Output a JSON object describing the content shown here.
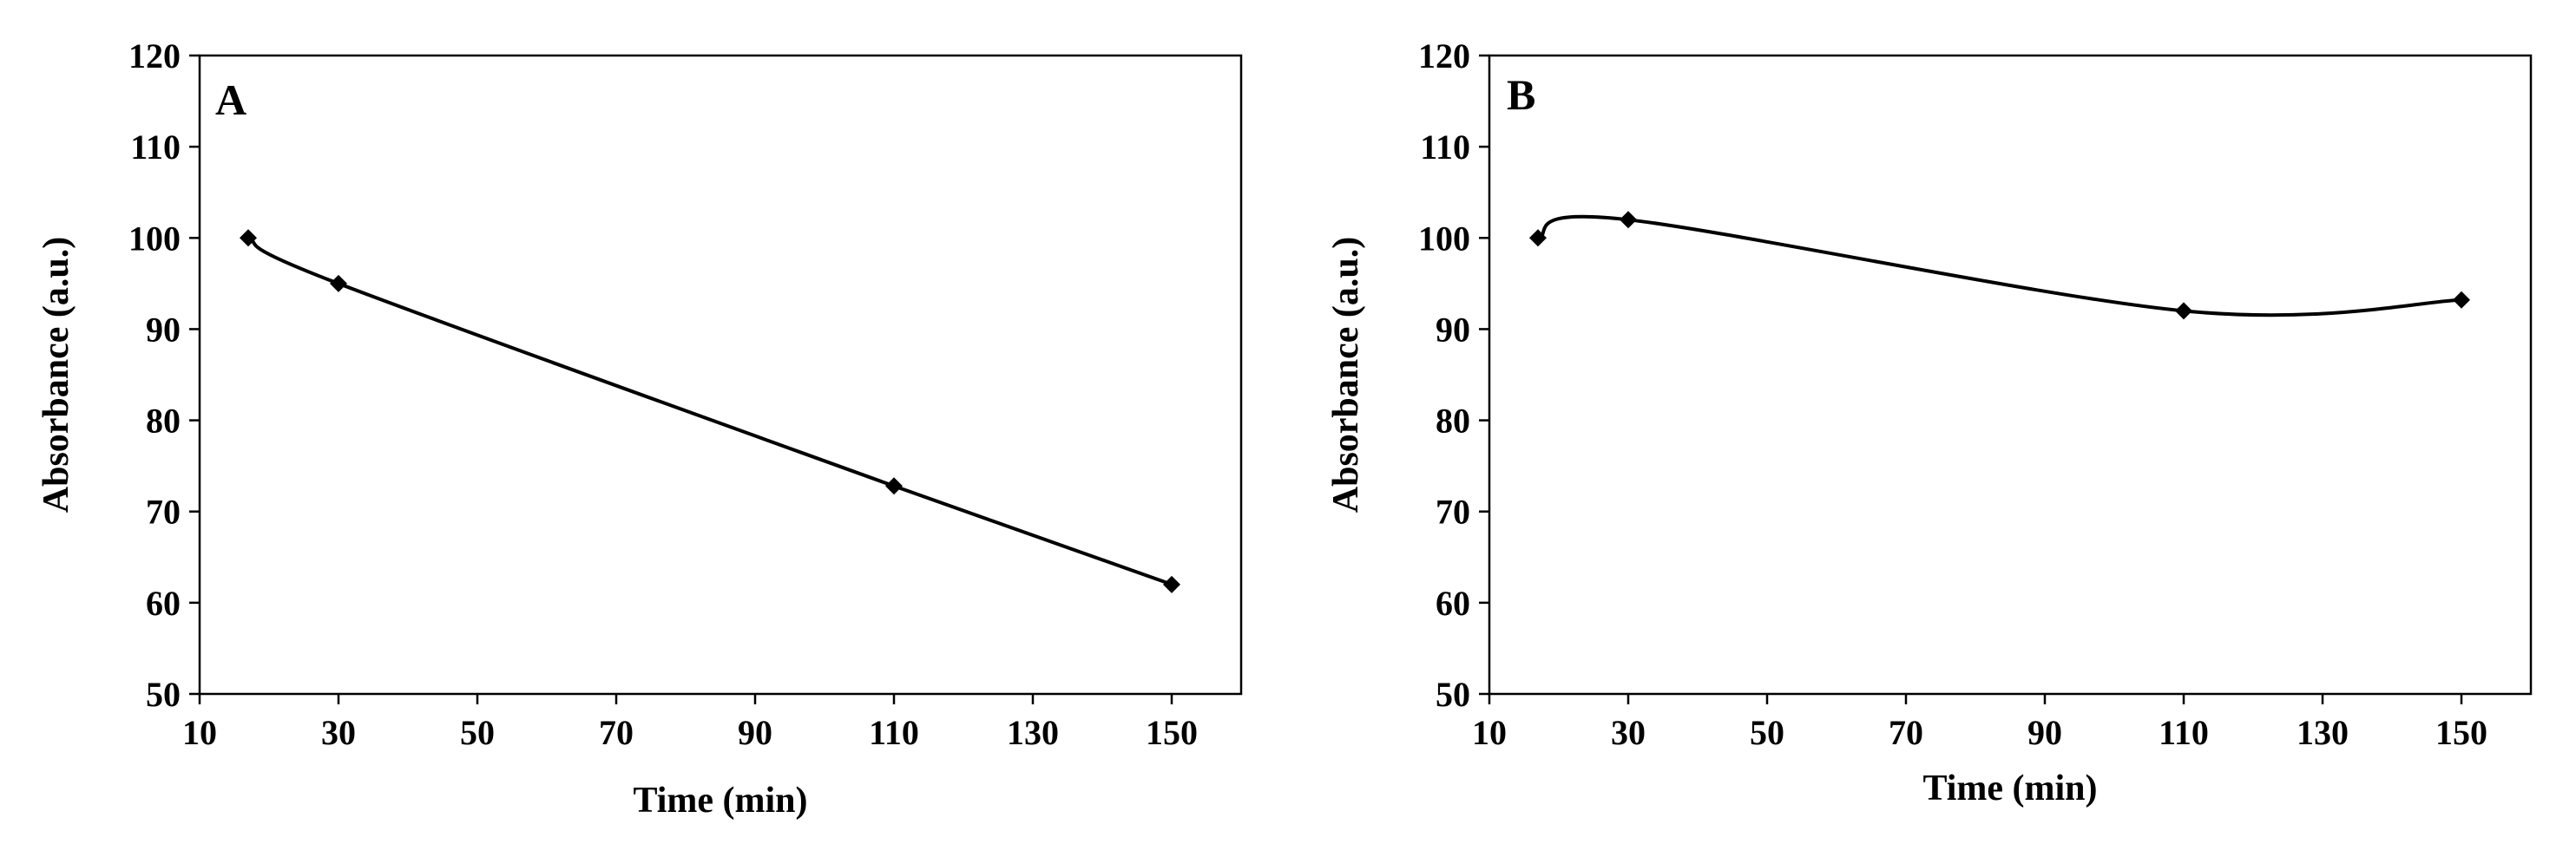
{
  "chart_data": [
    {
      "type": "line",
      "panel_label": "A",
      "xlabel": "Time (min)",
      "ylabel": "Absorbance (a.u.)",
      "xlim": [
        10,
        160
      ],
      "ylim": [
        50,
        120
      ],
      "xticks": [
        10,
        30,
        50,
        70,
        90,
        110,
        130,
        150
      ],
      "yticks": [
        50,
        60,
        70,
        80,
        90,
        100,
        110,
        120
      ],
      "grid": false,
      "smooth": true,
      "marker": "diamond",
      "color": "#000000",
      "series": [
        {
          "x": [
            17,
            30,
            110,
            150
          ],
          "y": [
            100,
            95,
            72.8,
            62
          ]
        }
      ]
    },
    {
      "type": "line",
      "panel_label": "B",
      "xlabel": "Time (min)",
      "ylabel": "Absorbance (a.u.)",
      "xlim": [
        10,
        160
      ],
      "ylim": [
        50,
        120
      ],
      "xticks": [
        10,
        30,
        50,
        70,
        90,
        110,
        130,
        150
      ],
      "yticks": [
        50,
        60,
        70,
        80,
        90,
        100,
        110,
        120
      ],
      "grid": false,
      "smooth": true,
      "marker": "diamond",
      "color": "#000000",
      "series": [
        {
          "x": [
            17,
            30,
            110,
            150
          ],
          "y": [
            100,
            102,
            92,
            93.2
          ]
        }
      ]
    }
  ]
}
